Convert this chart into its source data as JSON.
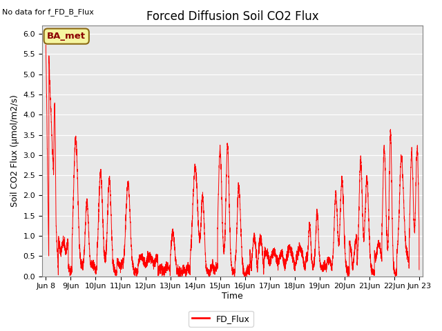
{
  "title": "Forced Diffusion Soil CO2 Flux",
  "no_data_text": "No data for f_FD_B_Flux",
  "ylabel": "Soil CO2 Flux (μmol/m2/s)",
  "xlabel": "Time",
  "legend_label": "FD_Flux",
  "line_color": "red",
  "ylim": [
    0.0,
    6.2
  ],
  "yticks": [
    0.0,
    0.5,
    1.0,
    1.5,
    2.0,
    2.5,
    3.0,
    3.5,
    4.0,
    4.5,
    5.0,
    5.5,
    6.0
  ],
  "bg_color": "#e8e8e8",
  "plot_bg": "#e8e8e8",
  "box_label": "BA_met",
  "box_facecolor": "#f5f5a0",
  "box_edgecolor": "#8B6914",
  "start_day": 8,
  "end_day": 23,
  "num_points": 5000,
  "figsize": [
    6.4,
    4.8
  ],
  "dpi": 100
}
